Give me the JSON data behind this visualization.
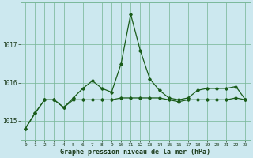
{
  "hours": [
    0,
    1,
    2,
    3,
    4,
    5,
    6,
    7,
    8,
    9,
    10,
    11,
    12,
    13,
    14,
    15,
    16,
    17,
    18,
    19,
    20,
    21,
    22,
    23
  ],
  "pressure_line1": [
    1014.8,
    1015.2,
    1015.55,
    1015.55,
    1015.35,
    1015.6,
    1015.85,
    1016.05,
    1015.85,
    1015.75,
    1016.5,
    1017.8,
    1016.85,
    1016.1,
    1015.8,
    1015.6,
    1015.55,
    1015.6,
    1015.8,
    1015.85,
    1015.85,
    1015.85,
    1015.9,
    1015.55
  ],
  "pressure_line2": [
    1014.8,
    1015.2,
    1015.55,
    1015.55,
    1015.35,
    1015.55,
    1015.55,
    1015.55,
    1015.55,
    1015.55,
    1015.6,
    1015.6,
    1015.6,
    1015.6,
    1015.6,
    1015.55,
    1015.5,
    1015.55,
    1015.55,
    1015.55,
    1015.55,
    1015.55,
    1015.6,
    1015.55
  ],
  "ylim": [
    1014.5,
    1018.1
  ],
  "yticks": [
    1015,
    1016,
    1017
  ],
  "bg_color": "#cce8ef",
  "grid_color": "#7ab89a",
  "line_color": "#1a5c1a",
  "xlabel": "Graphe pression niveau de la mer (hPa)"
}
